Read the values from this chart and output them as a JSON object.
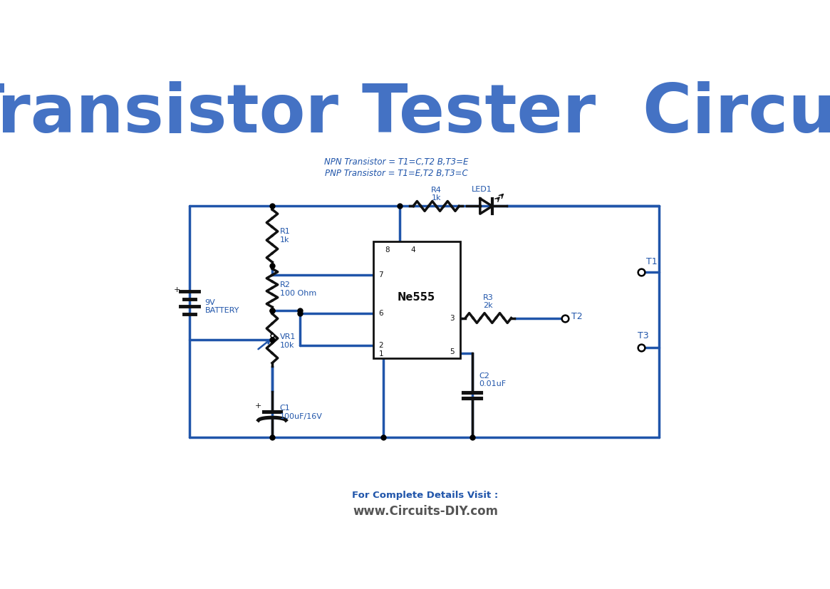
{
  "title": "Transistor Tester  Circuit",
  "title_color": "#4472C4",
  "title_fontsize": 68,
  "bg_color": "#FFFFFF",
  "cc": "#2055AA",
  "bk": "#111111",
  "lc": "#2055AA",
  "lw": 2.5,
  "fs": 8,
  "footer_line1": "For Complete Details Visit :",
  "footer_line1_color": "#2055AA",
  "footer_line2": "www.Circuits-DIY.com",
  "footer_line2_color": "#555555",
  "note_line1": "NPN Transistor = T1=C,T2 B,T3=E",
  "note_line2": "PNP Transistor = T1=E,T2 B,T3=C",
  "note_color": "#2055AA"
}
